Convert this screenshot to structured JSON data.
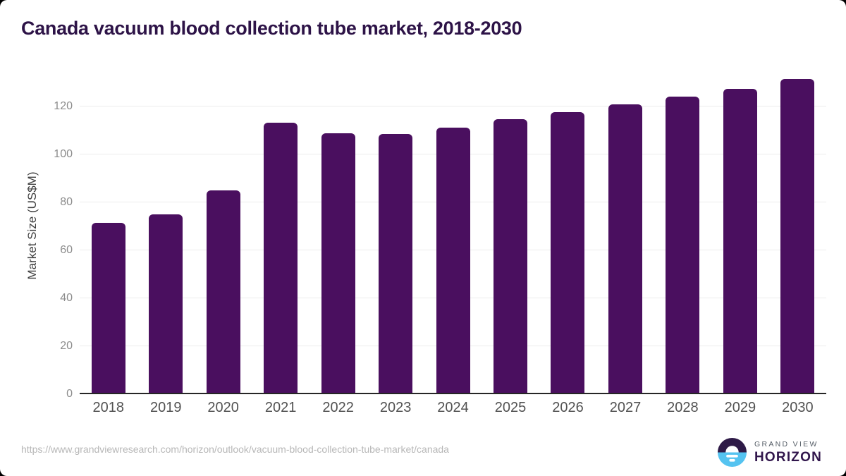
{
  "title": "Canada vacuum blood collection tube market, 2018-2030",
  "chart_data": {
    "type": "bar",
    "title": "Canada vacuum blood collection tube market, 2018-2030",
    "categories": [
      "2018",
      "2019",
      "2020",
      "2021",
      "2022",
      "2023",
      "2024",
      "2025",
      "2026",
      "2027",
      "2028",
      "2029",
      "2030"
    ],
    "values": [
      71.5,
      75.0,
      85.0,
      113.2,
      108.9,
      108.6,
      111.3,
      114.7,
      117.7,
      120.8,
      124.1,
      127.5,
      131.6
    ],
    "xlabel": "",
    "ylabel": "Market Size (US$M)",
    "yticks": [
      0,
      20,
      40,
      60,
      80,
      100,
      120
    ],
    "ylim": [
      0,
      135
    ],
    "grid": true,
    "legend": "none",
    "bar_color": "#4a0f5f"
  },
  "colors": {
    "bar": "#4a0f5f",
    "title_text": "#2d1347",
    "xlabel_text": "#525252",
    "ytick_text": "#8c8c8c",
    "gridline": "#ececec",
    "baseline": "#262626",
    "url_text": "#b7b7b7",
    "background": "#ffffff",
    "logo_dark_purple": "#2e1a47",
    "logo_light_blue": "#55c3f0"
  },
  "footer": {
    "source_url": "https://www.grandviewresearch.com/horizon/outlook/vacuum-blood-collection-tube-market/canada",
    "logo": {
      "line1": "GRAND VIEW",
      "line2": "HORIZON"
    }
  }
}
